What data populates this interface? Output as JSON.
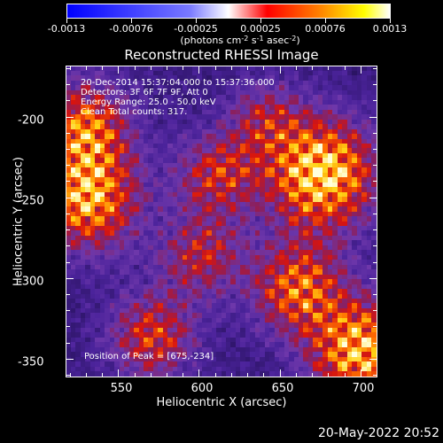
{
  "colorbar": {
    "tick_labels": [
      "-0.0013",
      "-0.00076",
      "-0.00025",
      "0.00025",
      "0.00076",
      "0.0013"
    ],
    "unit_prefix": "(photons cm",
    "unit_sup1": "-2",
    "unit_mid1": " s",
    "unit_sup2": "-1",
    "unit_mid2": " asec",
    "unit_sup3": "-2",
    "unit_suffix": ")",
    "colormap_stops": [
      "#0000ff",
      "#3a3aff",
      "#7a7aff",
      "#ffffff",
      "#ff0000",
      "#ff8000",
      "#ffff00",
      "#ffffff"
    ]
  },
  "plot": {
    "title": "Reconstructed RHESSI Image",
    "info_lines": [
      "20-Dec-2014 15:37:04.000 to 15:37:36.000",
      "Detectors: 3F 6F 7F 9F, Att 0",
      "Energy Range: 25.0 - 50.0 keV",
      "Clean    Total counts: 317."
    ],
    "peak_text": "Position of Peak = [675,-234]",
    "xlabel": "Heliocentric X (arcsec)",
    "ylabel": "Heliocentric Y (arcsec)",
    "xticks": [
      "550",
      "600",
      "650",
      "700"
    ],
    "yticks": [
      "-200",
      "-250",
      "-300",
      "-350"
    ],
    "colormap": "solar-heat (black-purple-red-orange-yellow-white)"
  },
  "chart_data": {
    "type": "heatmap",
    "title": "Reconstructed RHESSI Image",
    "xlabel": "Heliocentric X (arcsec)",
    "ylabel": "Heliocentric Y (arcsec)",
    "xlim": [
      518,
      710
    ],
    "ylim": [
      -361,
      -169
    ],
    "xticks": [
      550,
      600,
      650,
      700
    ],
    "yticks": [
      -200,
      -250,
      -300,
      -350
    ],
    "zlim": [
      -0.0013,
      0.0013
    ],
    "peak_position": [
      675,
      -234
    ],
    "bright_regions": [
      {
        "x": 675,
        "y": -234,
        "intensity": 1.0
      },
      {
        "x": 530,
        "y": -250,
        "intensity": 0.85
      },
      {
        "x": 528,
        "y": -205,
        "intensity": 0.7
      },
      {
        "x": 700,
        "y": -345,
        "intensity": 0.9
      },
      {
        "x": 660,
        "y": -305,
        "intensity": 0.7
      },
      {
        "x": 570,
        "y": -335,
        "intensity": 0.6
      },
      {
        "x": 610,
        "y": -235,
        "intensity": 0.55
      },
      {
        "x": 600,
        "y": -285,
        "intensity": 0.5
      },
      {
        "x": 640,
        "y": -200,
        "intensity": 0.4
      }
    ]
  },
  "footer": {
    "timestamp": "20-May-2022 20:52"
  }
}
